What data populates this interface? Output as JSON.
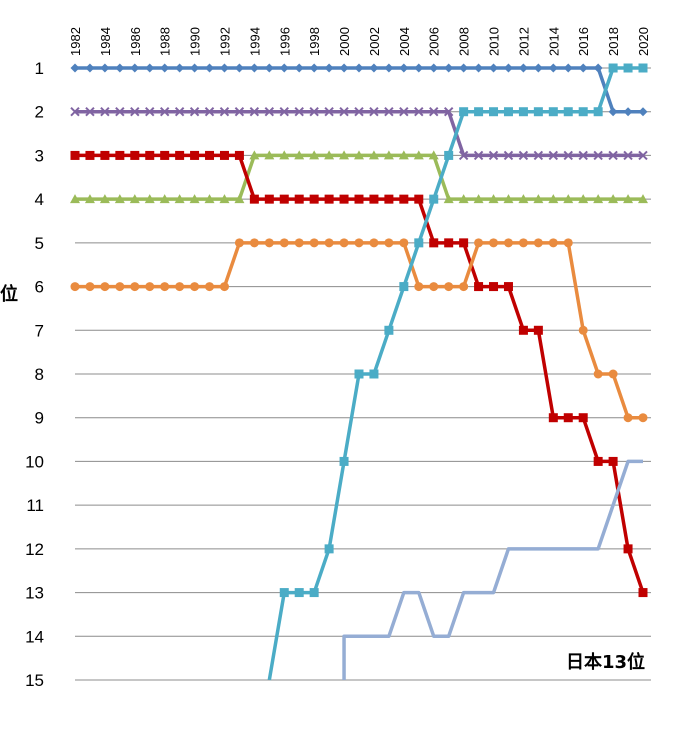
{
  "chart_data": {
    "type": "line",
    "title": "",
    "xlabel": "",
    "ylabel": "",
    "y_axis_label_fragment": "位",
    "ylim": [
      1,
      15
    ],
    "y_inverted": true,
    "y_ticks": [
      "1",
      "2",
      "3",
      "4",
      "5",
      "6",
      "7",
      "8",
      "9",
      "10",
      "11",
      "12",
      "13",
      "14",
      "15"
    ],
    "x_ticks": [
      "1982",
      "1984",
      "1986",
      "1988",
      "1990",
      "1992",
      "1994",
      "1996",
      "1998",
      "2000",
      "2002",
      "2004",
      "2006",
      "2008",
      "2010",
      "2012",
      "2014",
      "2016",
      "2018",
      "2020"
    ],
    "x_axis_position": "top",
    "grid": "horizontal",
    "annotation": "日本13位",
    "series": [
      {
        "color": "#4f81bd",
        "marker": "diamond",
        "points": [
          [
            1982,
            1
          ],
          [
            1983,
            1
          ],
          [
            1984,
            1
          ],
          [
            1985,
            1
          ],
          [
            1986,
            1
          ],
          [
            1987,
            1
          ],
          [
            1988,
            1
          ],
          [
            1989,
            1
          ],
          [
            1990,
            1
          ],
          [
            1991,
            1
          ],
          [
            1992,
            1
          ],
          [
            1993,
            1
          ],
          [
            1994,
            1
          ],
          [
            1995,
            1
          ],
          [
            1996,
            1
          ],
          [
            1997,
            1
          ],
          [
            1998,
            1
          ],
          [
            1999,
            1
          ],
          [
            2000,
            1
          ],
          [
            2001,
            1
          ],
          [
            2002,
            1
          ],
          [
            2003,
            1
          ],
          [
            2004,
            1
          ],
          [
            2005,
            1
          ],
          [
            2006,
            1
          ],
          [
            2007,
            1
          ],
          [
            2008,
            1
          ],
          [
            2009,
            1
          ],
          [
            2010,
            1
          ],
          [
            2011,
            1
          ],
          [
            2012,
            1
          ],
          [
            2013,
            1
          ],
          [
            2014,
            1
          ],
          [
            2015,
            1
          ],
          [
            2016,
            1
          ],
          [
            2017,
            1
          ],
          [
            2018,
            2
          ],
          [
            2019,
            2
          ],
          [
            2020,
            2
          ]
        ]
      },
      {
        "color": "#8064a2",
        "marker": "x",
        "points": [
          [
            1982,
            2
          ],
          [
            1983,
            2
          ],
          [
            1984,
            2
          ],
          [
            1985,
            2
          ],
          [
            1986,
            2
          ],
          [
            1987,
            2
          ],
          [
            1988,
            2
          ],
          [
            1989,
            2
          ],
          [
            1990,
            2
          ],
          [
            1991,
            2
          ],
          [
            1992,
            2
          ],
          [
            1993,
            2
          ],
          [
            1994,
            2
          ],
          [
            1995,
            2
          ],
          [
            1996,
            2
          ],
          [
            1997,
            2
          ],
          [
            1998,
            2
          ],
          [
            1999,
            2
          ],
          [
            2000,
            2
          ],
          [
            2001,
            2
          ],
          [
            2002,
            2
          ],
          [
            2003,
            2
          ],
          [
            2004,
            2
          ],
          [
            2005,
            2
          ],
          [
            2006,
            2
          ],
          [
            2007,
            2
          ],
          [
            2008,
            3
          ],
          [
            2009,
            3
          ],
          [
            2010,
            3
          ],
          [
            2011,
            3
          ],
          [
            2012,
            3
          ],
          [
            2013,
            3
          ],
          [
            2014,
            3
          ],
          [
            2015,
            3
          ],
          [
            2016,
            3
          ],
          [
            2017,
            3
          ],
          [
            2018,
            3
          ],
          [
            2019,
            3
          ],
          [
            2020,
            3
          ]
        ]
      },
      {
        "color": "#9bbb59",
        "marker": "triangle",
        "points": [
          [
            1982,
            4
          ],
          [
            1983,
            4
          ],
          [
            1984,
            4
          ],
          [
            1985,
            4
          ],
          [
            1986,
            4
          ],
          [
            1987,
            4
          ],
          [
            1988,
            4
          ],
          [
            1989,
            4
          ],
          [
            1990,
            4
          ],
          [
            1991,
            4
          ],
          [
            1992,
            4
          ],
          [
            1993,
            4
          ],
          [
            1994,
            3
          ],
          [
            1995,
            3
          ],
          [
            1996,
            3
          ],
          [
            1997,
            3
          ],
          [
            1998,
            3
          ],
          [
            1999,
            3
          ],
          [
            2000,
            3
          ],
          [
            2001,
            3
          ],
          [
            2002,
            3
          ],
          [
            2003,
            3
          ],
          [
            2004,
            3
          ],
          [
            2005,
            3
          ],
          [
            2006,
            3
          ],
          [
            2007,
            4
          ],
          [
            2008,
            4
          ],
          [
            2009,
            4
          ],
          [
            2010,
            4
          ],
          [
            2011,
            4
          ],
          [
            2012,
            4
          ],
          [
            2013,
            4
          ],
          [
            2014,
            4
          ],
          [
            2015,
            4
          ],
          [
            2016,
            4
          ],
          [
            2017,
            4
          ],
          [
            2018,
            4
          ],
          [
            2019,
            4
          ],
          [
            2020,
            4
          ]
        ]
      },
      {
        "color": "#c00000",
        "marker": "square",
        "points": [
          [
            1982,
            3
          ],
          [
            1983,
            3
          ],
          [
            1984,
            3
          ],
          [
            1985,
            3
          ],
          [
            1986,
            3
          ],
          [
            1987,
            3
          ],
          [
            1988,
            3
          ],
          [
            1989,
            3
          ],
          [
            1990,
            3
          ],
          [
            1991,
            3
          ],
          [
            1992,
            3
          ],
          [
            1993,
            3
          ],
          [
            1994,
            4
          ],
          [
            1995,
            4
          ],
          [
            1996,
            4
          ],
          [
            1997,
            4
          ],
          [
            1998,
            4
          ],
          [
            1999,
            4
          ],
          [
            2000,
            4
          ],
          [
            2001,
            4
          ],
          [
            2002,
            4
          ],
          [
            2003,
            4
          ],
          [
            2004,
            4
          ],
          [
            2005,
            4
          ],
          [
            2006,
            5
          ],
          [
            2007,
            5
          ],
          [
            2008,
            5
          ],
          [
            2009,
            6
          ],
          [
            2010,
            6
          ],
          [
            2011,
            6
          ],
          [
            2012,
            7
          ],
          [
            2013,
            7
          ],
          [
            2014,
            9
          ],
          [
            2015,
            9
          ],
          [
            2016,
            9
          ],
          [
            2017,
            10
          ],
          [
            2018,
            10
          ],
          [
            2019,
            12
          ],
          [
            2020,
            13
          ]
        ]
      },
      {
        "color": "#e98b3f",
        "marker": "circle",
        "points": [
          [
            1982,
            6
          ],
          [
            1983,
            6
          ],
          [
            1984,
            6
          ],
          [
            1985,
            6
          ],
          [
            1986,
            6
          ],
          [
            1987,
            6
          ],
          [
            1988,
            6
          ],
          [
            1989,
            6
          ],
          [
            1990,
            6
          ],
          [
            1991,
            6
          ],
          [
            1992,
            6
          ],
          [
            1993,
            5
          ],
          [
            1994,
            5
          ],
          [
            1995,
            5
          ],
          [
            1996,
            5
          ],
          [
            1997,
            5
          ],
          [
            1998,
            5
          ],
          [
            1999,
            5
          ],
          [
            2000,
            5
          ],
          [
            2001,
            5
          ],
          [
            2002,
            5
          ],
          [
            2003,
            5
          ],
          [
            2004,
            5
          ],
          [
            2005,
            6
          ],
          [
            2006,
            6
          ],
          [
            2007,
            6
          ],
          [
            2008,
            6
          ],
          [
            2009,
            5
          ],
          [
            2010,
            5
          ],
          [
            2011,
            5
          ],
          [
            2012,
            5
          ],
          [
            2013,
            5
          ],
          [
            2014,
            5
          ],
          [
            2015,
            5
          ],
          [
            2016,
            7
          ],
          [
            2017,
            8
          ],
          [
            2018,
            8
          ],
          [
            2019,
            9
          ],
          [
            2020,
            9
          ]
        ]
      },
      {
        "color": "#4bacc6",
        "marker": "asterisk",
        "points": [
          [
            1995,
            15
          ],
          [
            1996,
            13
          ],
          [
            1997,
            13
          ],
          [
            1998,
            13
          ],
          [
            1999,
            12
          ],
          [
            2000,
            10
          ],
          [
            2001,
            8
          ],
          [
            2002,
            8
          ],
          [
            2003,
            7
          ],
          [
            2004,
            6
          ],
          [
            2005,
            5
          ],
          [
            2006,
            4
          ],
          [
            2007,
            3
          ],
          [
            2008,
            2
          ],
          [
            2009,
            2
          ],
          [
            2010,
            2
          ],
          [
            2011,
            2
          ],
          [
            2012,
            2
          ],
          [
            2013,
            2
          ],
          [
            2014,
            2
          ],
          [
            2015,
            2
          ],
          [
            2016,
            2
          ],
          [
            2017,
            2
          ],
          [
            2018,
            1
          ],
          [
            2019,
            1
          ],
          [
            2020,
            1
          ]
        ]
      },
      {
        "color": "#95add4",
        "marker": "dash",
        "points": [
          [
            2000,
            15
          ],
          [
            2000,
            14
          ],
          [
            2001,
            14
          ],
          [
            2002,
            14
          ],
          [
            2003,
            14
          ],
          [
            2004,
            13
          ],
          [
            2005,
            13
          ],
          [
            2006,
            14
          ],
          [
            2007,
            14
          ],
          [
            2008,
            13
          ],
          [
            2009,
            13
          ],
          [
            2010,
            13
          ],
          [
            2011,
            12
          ],
          [
            2012,
            12
          ],
          [
            2013,
            12
          ],
          [
            2014,
            12
          ],
          [
            2015,
            12
          ],
          [
            2016,
            12
          ],
          [
            2017,
            12
          ],
          [
            2019,
            10
          ],
          [
            2020,
            10
          ]
        ]
      }
    ]
  }
}
